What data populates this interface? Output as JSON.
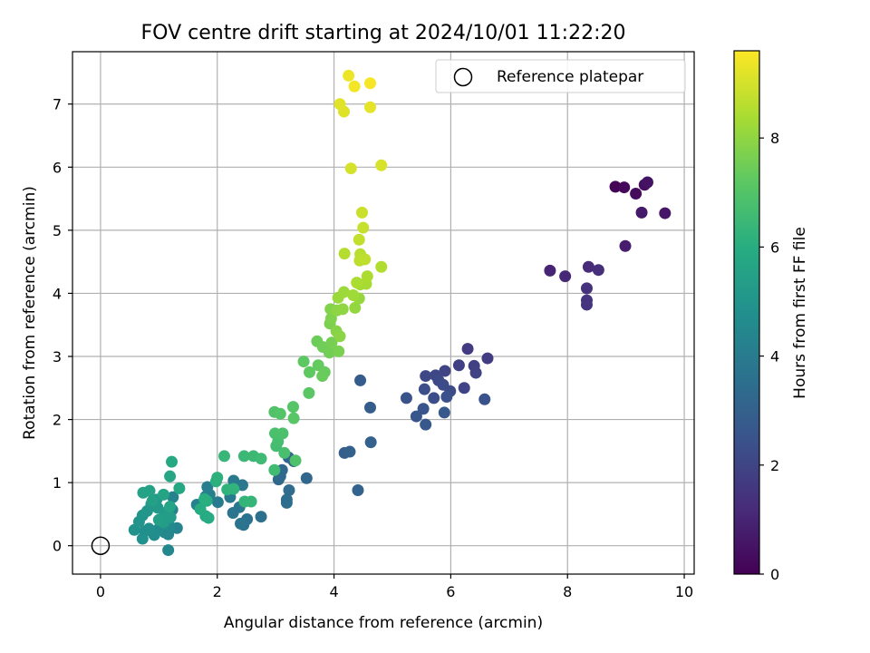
{
  "chart_data": {
    "type": "scatter",
    "title": "FOV centre drift starting at 2024/10/01 11:22:20",
    "xlabel": "Angular distance from reference (arcmin)",
    "ylabel": "Rotation from reference (arcmin)",
    "xlim": [
      -0.48,
      10.17
    ],
    "ylim": [
      -0.45,
      7.83
    ],
    "xticks": [
      0,
      2,
      4,
      6,
      8,
      10
    ],
    "yticks": [
      0,
      1,
      2,
      3,
      4,
      5,
      6,
      7
    ],
    "grid": true,
    "legend": {
      "position": "upper-right",
      "entries": [
        "Reference platepar"
      ]
    },
    "reference_point": {
      "x": 0,
      "y": 0
    },
    "colorbar": {
      "label": "Hours from first FF file",
      "range": [
        0,
        9.6
      ],
      "ticks": [
        0,
        2,
        4,
        6,
        8
      ],
      "colormap": "viridis"
    },
    "series": [
      {
        "points": [
          [
            8.82,
            5.69,
            0.1
          ],
          [
            8.97,
            5.68,
            0.2
          ],
          [
            9.17,
            5.58,
            0.3
          ],
          [
            9.32,
            5.72,
            0.4
          ],
          [
            9.37,
            5.76,
            0.5
          ],
          [
            9.67,
            5.27,
            0.6
          ],
          [
            9.27,
            5.28,
            0.7
          ],
          [
            8.99,
            4.75,
            0.8
          ],
          [
            7.7,
            4.36,
            1.0
          ],
          [
            7.96,
            4.27,
            1.1
          ],
          [
            8.36,
            4.42,
            1.2
          ],
          [
            8.53,
            4.37,
            1.3
          ],
          [
            8.33,
            4.08,
            1.4
          ],
          [
            8.33,
            3.89,
            1.45
          ],
          [
            8.33,
            3.82,
            1.5
          ],
          [
            6.29,
            3.12,
            1.7
          ],
          [
            6.63,
            2.97,
            1.75
          ],
          [
            6.14,
            2.86,
            1.8
          ],
          [
            6.4,
            2.85,
            1.85
          ],
          [
            6.43,
            2.74,
            1.9
          ],
          [
            6.23,
            2.5,
            1.95
          ],
          [
            5.9,
            2.77,
            2.0
          ],
          [
            5.74,
            2.7,
            2.05
          ],
          [
            5.57,
            2.69,
            2.1
          ],
          [
            5.79,
            2.62,
            2.15
          ],
          [
            5.87,
            2.55,
            2.2
          ],
          [
            5.99,
            2.45,
            2.25
          ],
          [
            5.71,
            2.34,
            2.3
          ],
          [
            5.55,
            2.48,
            2.35
          ],
          [
            5.93,
            2.36,
            2.4
          ],
          [
            6.58,
            2.32,
            2.45
          ],
          [
            5.24,
            2.34,
            2.5
          ],
          [
            5.53,
            2.17,
            2.55
          ],
          [
            5.41,
            2.05,
            2.6
          ],
          [
            5.57,
            1.92,
            2.65
          ],
          [
            5.89,
            2.11,
            2.7
          ],
          [
            4.45,
            2.62,
            2.8
          ],
          [
            4.62,
            2.19,
            2.85
          ],
          [
            4.18,
            1.47,
            2.9
          ],
          [
            4.27,
            1.49,
            2.95
          ],
          [
            4.63,
            1.64,
            3.0
          ],
          [
            4.41,
            0.88,
            3.05
          ],
          [
            3.31,
            1.34,
            3.1
          ],
          [
            3.22,
            1.4,
            3.15
          ],
          [
            3.53,
            1.07,
            3.2
          ],
          [
            3.05,
            1.05,
            3.25
          ],
          [
            3.11,
            1.2,
            3.3
          ],
          [
            3.08,
            1.1,
            3.35
          ],
          [
            3.23,
            0.88,
            3.4
          ],
          [
            3.19,
            0.73,
            3.45
          ],
          [
            3.19,
            0.68,
            3.5
          ],
          [
            2.75,
            0.46,
            3.55
          ],
          [
            2.51,
            0.42,
            3.6
          ],
          [
            2.45,
            0.33,
            3.65
          ],
          [
            2.4,
            0.35,
            3.7
          ],
          [
            2.27,
            0.52,
            3.75
          ],
          [
            2.38,
            0.61,
            3.8
          ],
          [
            2.43,
            0.96,
            3.85
          ],
          [
            2.28,
            1.03,
            3.9
          ],
          [
            2.22,
            0.77,
            3.95
          ],
          [
            2.01,
            0.69,
            4.0
          ],
          [
            1.8,
            0.78,
            4.05
          ],
          [
            1.83,
            0.93,
            4.1
          ],
          [
            1.87,
            0.81,
            4.15
          ],
          [
            1.65,
            0.65,
            4.2
          ],
          [
            1.24,
            0.77,
            4.25
          ],
          [
            1.23,
            0.57,
            4.3
          ],
          [
            1.31,
            0.28,
            4.35
          ],
          [
            1.16,
            0.18,
            4.4
          ],
          [
            1.16,
            -0.07,
            4.45
          ],
          [
            1.1,
            0.21,
            4.5
          ],
          [
            1.18,
            0.31,
            4.55
          ],
          [
            1.05,
            0.35,
            4.6
          ],
          [
            1.0,
            0.27,
            4.65
          ],
          [
            0.92,
            0.17,
            4.7
          ],
          [
            0.83,
            0.27,
            4.75
          ],
          [
            0.76,
            0.23,
            4.8
          ],
          [
            0.72,
            0.11,
            4.85
          ],
          [
            0.58,
            0.25,
            4.9
          ],
          [
            0.66,
            0.38,
            4.95
          ],
          [
            0.72,
            0.48,
            5.0
          ],
          [
            0.8,
            0.55,
            5.05
          ],
          [
            0.87,
            0.66,
            5.1
          ],
          [
            0.96,
            0.73,
            5.15
          ],
          [
            0.98,
            0.6,
            5.2
          ],
          [
            1.1,
            0.52,
            5.25
          ],
          [
            1.2,
            0.45,
            5.3
          ],
          [
            1.08,
            0.37,
            5.35
          ],
          [
            1.0,
            0.41,
            5.4
          ],
          [
            0.89,
            0.71,
            5.45
          ],
          [
            0.84,
            0.87,
            5.5
          ],
          [
            0.73,
            0.84,
            5.55
          ],
          [
            1.08,
            0.81,
            5.6
          ],
          [
            1.19,
            0.62,
            5.65
          ],
          [
            1.19,
            1.1,
            5.7
          ],
          [
            1.35,
            0.91,
            5.75
          ],
          [
            1.22,
            1.33,
            5.8
          ],
          [
            1.8,
            0.47,
            5.85
          ],
          [
            1.85,
            0.44,
            5.9
          ],
          [
            1.71,
            0.58,
            5.95
          ],
          [
            1.82,
            0.71,
            6.0
          ],
          [
            1.78,
            0.74,
            6.05
          ],
          [
            1.98,
            1.02,
            6.1
          ],
          [
            2.0,
            1.08,
            6.15
          ],
          [
            2.17,
            0.89,
            6.2
          ],
          [
            2.28,
            0.9,
            6.25
          ],
          [
            2.47,
            0.7,
            6.3
          ],
          [
            2.58,
            0.7,
            6.35
          ],
          [
            2.12,
            1.42,
            6.4
          ],
          [
            2.46,
            1.42,
            6.45
          ],
          [
            2.62,
            1.42,
            6.5
          ],
          [
            2.75,
            1.38,
            6.55
          ],
          [
            2.98,
            1.2,
            6.6
          ],
          [
            3.01,
            1.58,
            6.65
          ],
          [
            3.04,
            1.65,
            6.7
          ],
          [
            3.15,
            1.47,
            6.75
          ],
          [
            2.99,
            1.78,
            6.8
          ],
          [
            3.12,
            1.78,
            6.85
          ],
          [
            3.34,
            1.35,
            6.9
          ],
          [
            2.98,
            2.12,
            6.95
          ],
          [
            3.08,
            2.09,
            7.0
          ],
          [
            3.3,
            2.2,
            7.05
          ],
          [
            3.31,
            2.02,
            7.1
          ],
          [
            3.57,
            2.42,
            7.15
          ],
          [
            3.48,
            2.92,
            7.2
          ],
          [
            3.58,
            2.75,
            7.25
          ],
          [
            3.73,
            2.86,
            7.3
          ],
          [
            3.84,
            2.75,
            7.35
          ],
          [
            3.8,
            2.69,
            7.4
          ],
          [
            3.71,
            3.24,
            7.45
          ],
          [
            3.81,
            3.15,
            7.5
          ],
          [
            3.92,
            3.06,
            7.55
          ],
          [
            3.96,
            3.22,
            7.6
          ],
          [
            4.08,
            3.08,
            7.65
          ],
          [
            3.93,
            3.52,
            7.7
          ],
          [
            3.95,
            3.6,
            7.75
          ],
          [
            3.94,
            3.75,
            7.8
          ],
          [
            4.04,
            3.4,
            7.85
          ],
          [
            4.1,
            3.32,
            7.9
          ],
          [
            4.05,
            3.73,
            7.95
          ],
          [
            4.15,
            3.75,
            8.0
          ],
          [
            4.36,
            3.77,
            8.05
          ],
          [
            4.43,
            3.92,
            8.1
          ],
          [
            4.07,
            3.93,
            8.15
          ],
          [
            4.17,
            4.02,
            8.2
          ],
          [
            4.33,
            3.97,
            8.25
          ],
          [
            4.45,
            4.14,
            8.3
          ],
          [
            4.55,
            4.15,
            8.35
          ],
          [
            4.39,
            4.17,
            8.4
          ],
          [
            4.57,
            4.27,
            8.45
          ],
          [
            4.81,
            4.42,
            8.5
          ],
          [
            4.18,
            4.63,
            8.55
          ],
          [
            4.45,
            4.62,
            8.6
          ],
          [
            4.44,
            4.52,
            8.65
          ],
          [
            4.53,
            4.54,
            8.7
          ],
          [
            4.43,
            4.85,
            8.75
          ],
          [
            4.5,
            5.04,
            8.8
          ],
          [
            4.48,
            5.28,
            8.85
          ],
          [
            4.29,
            5.98,
            9.0
          ],
          [
            4.81,
            6.03,
            9.05
          ],
          [
            4.17,
            6.88,
            9.15
          ],
          [
            4.1,
            7.0,
            9.2
          ],
          [
            4.62,
            6.95,
            9.25
          ],
          [
            4.25,
            7.45,
            9.35
          ],
          [
            4.35,
            7.28,
            9.45
          ],
          [
            4.62,
            7.33,
            9.5
          ]
        ]
      }
    ]
  }
}
